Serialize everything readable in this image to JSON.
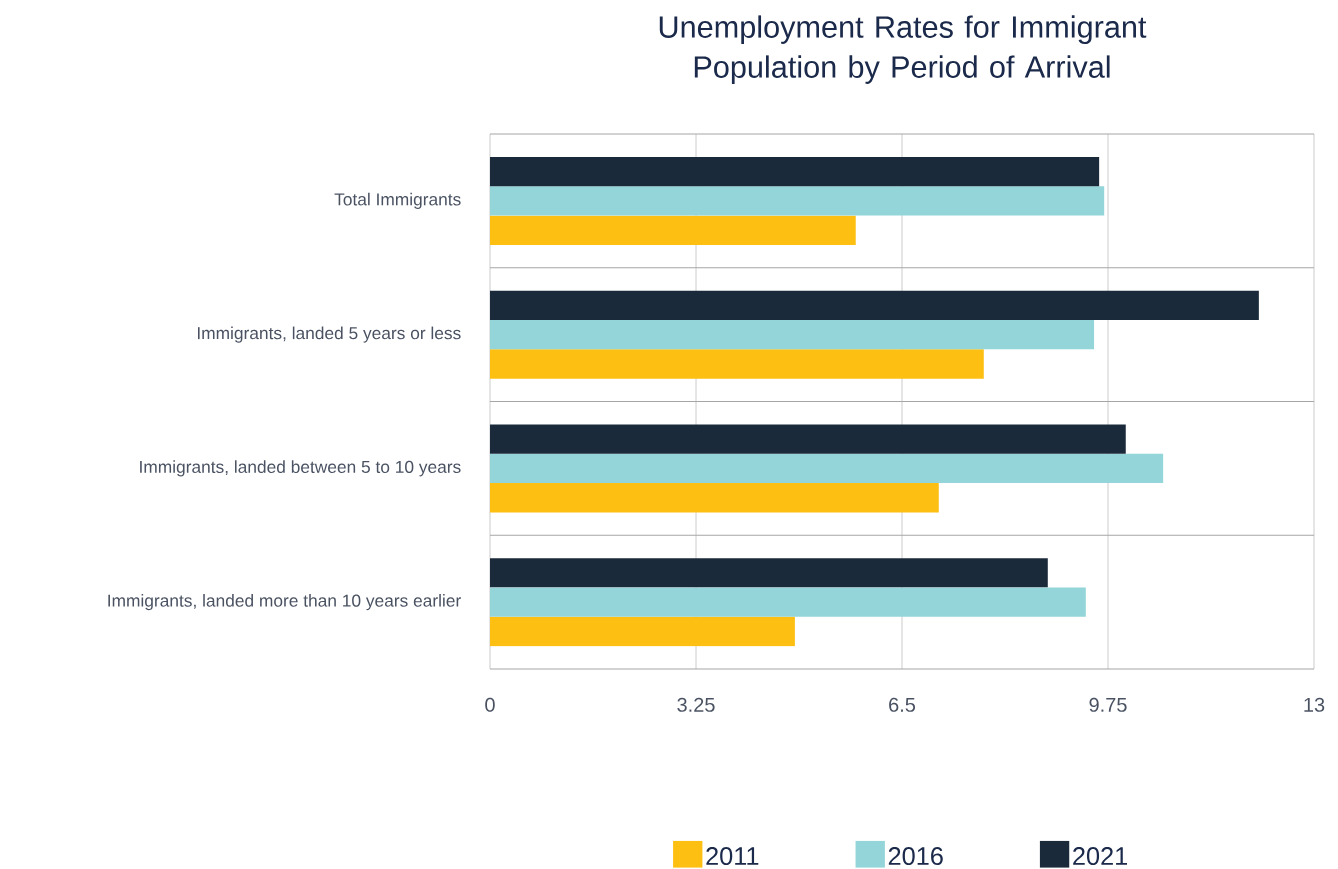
{
  "chart_data": {
    "type": "bar",
    "orientation": "horizontal",
    "title": "Unemployment Rates for Immigrant Population by Period of Arrival",
    "categories": [
      "Total Immigrants",
      "Immigrants, landed 5 years or less",
      "Immigrants, landed between 5 to 10 years",
      "Immigrants, landed more than 10 years earlier"
    ],
    "series": [
      {
        "name": "2011",
        "color": "#fdbf12",
        "values": [
          5.77,
          7.79,
          7.08,
          4.81
        ]
      },
      {
        "name": "2016",
        "color": "#94d5da",
        "values": [
          9.69,
          9.53,
          10.62,
          9.4
        ]
      },
      {
        "name": "2021",
        "color": "#1b2a3a",
        "values": [
          9.61,
          12.13,
          10.03,
          8.8
        ]
      }
    ],
    "xlim": [
      0,
      13
    ],
    "xticks": [
      0,
      3.25,
      6.5,
      9.75,
      13
    ],
    "grid": true,
    "legend": "bottom"
  }
}
